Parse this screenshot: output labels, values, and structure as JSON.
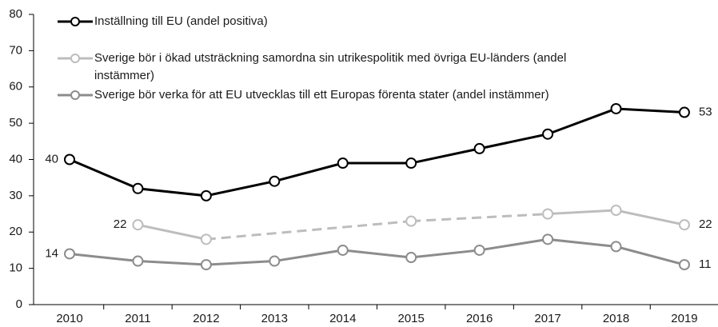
{
  "chart_data": {
    "type": "line",
    "categories": [
      "2010",
      "2011",
      "2012",
      "2013",
      "2014",
      "2015",
      "2016",
      "2017",
      "2018",
      "2019"
    ],
    "series": [
      {
        "name": "Inställning till EU (andel positiva)",
        "color": "#000000",
        "values": [
          40,
          32,
          30,
          34,
          39,
          39,
          43,
          47,
          54,
          53
        ],
        "data_labels": "ends"
      },
      {
        "name": "Sverige bör i ökad utsträckning samordna sin utrikespolitik med övriga EU-länders (andel instämmer)",
        "color": "#bdbdbd",
        "values": [
          null,
          22,
          18,
          null,
          null,
          23,
          null,
          25,
          26,
          22
        ],
        "data_labels": "ends",
        "gap_line": "dashed"
      },
      {
        "name": "Sverige bör verka för att EU utvecklas till ett Europas förenta stater (andel instämmer)",
        "color": "#8c8c8c",
        "values": [
          14,
          12,
          11,
          12,
          15,
          13,
          15,
          18,
          16,
          11
        ],
        "data_labels": "ends"
      }
    ],
    "ylim": [
      0,
      80
    ],
    "yticks": [
      0,
      10,
      20,
      30,
      40,
      50,
      60,
      70,
      80
    ],
    "grid": false,
    "legend": "upper left"
  }
}
